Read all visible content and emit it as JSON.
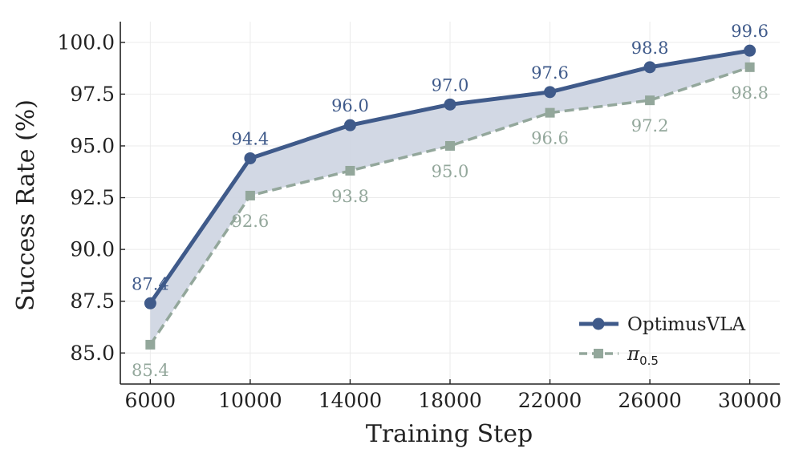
{
  "chart_data": {
    "type": "line",
    "xlabel": "Training Step",
    "ylabel": "Success Rate (%)",
    "x": [
      6000,
      10000,
      14000,
      18000,
      22000,
      26000,
      30000
    ],
    "x_ticks": [
      "6000",
      "10000",
      "14000",
      "18000",
      "22000",
      "26000",
      "30000"
    ],
    "y_ticks": [
      "85.0",
      "87.5",
      "90.0",
      "92.5",
      "95.0",
      "97.5",
      "100.0"
    ],
    "y_tick_values": [
      85.0,
      87.5,
      90.0,
      92.5,
      95.0,
      97.5,
      100.0
    ],
    "xlim": [
      4800,
      31200
    ],
    "ylim": [
      83.5,
      101.0
    ],
    "grid": true,
    "legend_position": "lower-right",
    "fill_between_series": true,
    "series": [
      {
        "name": "OptimusVLA",
        "values": [
          87.4,
          94.4,
          96.0,
          97.0,
          97.6,
          98.8,
          99.6
        ],
        "labels": [
          "87.4",
          "94.4",
          "96.0",
          "97.0",
          "97.6",
          "98.8",
          "99.6"
        ],
        "color": "#3f5a8a",
        "marker": "circle",
        "line_style": "solid"
      },
      {
        "name": "π",
        "name_subscript": "0.5",
        "values": [
          85.4,
          92.6,
          93.8,
          95.0,
          96.6,
          97.2,
          98.8
        ],
        "labels": [
          "85.4",
          "92.6",
          "93.8",
          "95.0",
          "96.6",
          "97.2",
          "98.8"
        ],
        "color": "#93a79b",
        "marker": "square",
        "line_style": "dashed"
      }
    ],
    "fill_color": "#d0d6e3"
  }
}
